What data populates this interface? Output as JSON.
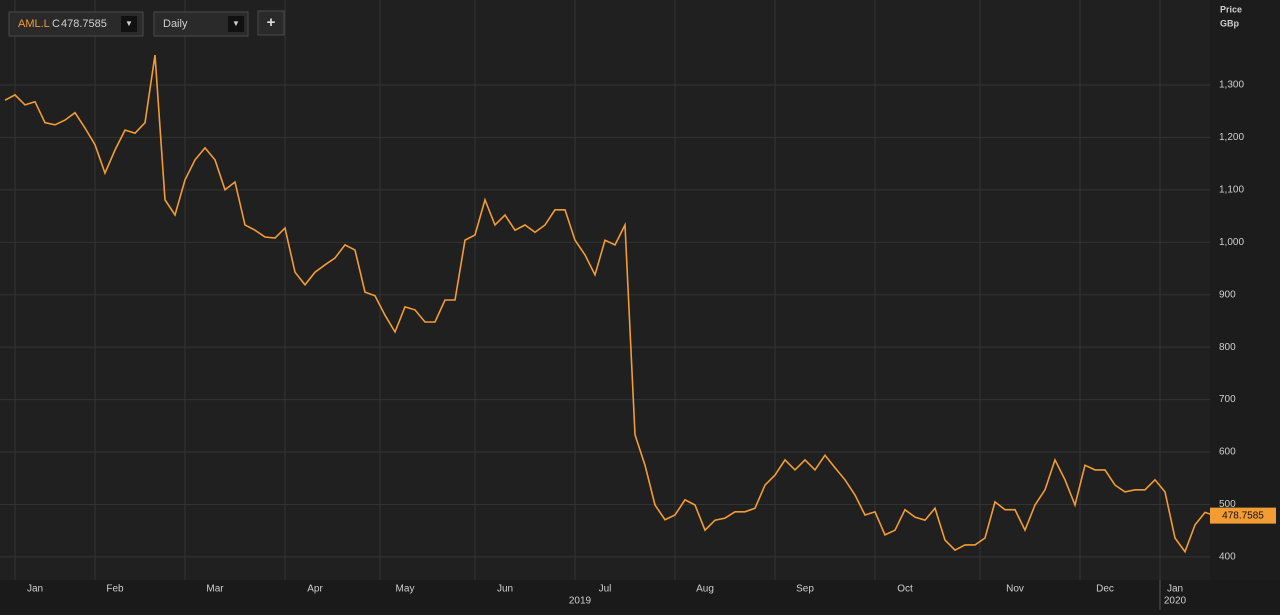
{
  "header": {
    "ticker": "AML.L",
    "close_prefix": "C",
    "close": 478.7585,
    "interval": "Daily",
    "add_button": "+"
  },
  "chart_data": {
    "type": "line",
    "axis_title": [
      "Price",
      "GBp"
    ],
    "categories": [
      null,
      null,
      null,
      "Jan",
      null,
      null,
      null,
      null,
      null,
      null,
      null,
      "Feb",
      null,
      null,
      null,
      null,
      null,
      null,
      null,
      null,
      null,
      "Mar",
      null,
      null,
      null,
      null,
      null,
      null,
      null,
      null,
      null,
      "Apr",
      null,
      null,
      null,
      null,
      null,
      null,
      null,
      null,
      "May",
      null,
      null,
      null,
      null,
      null,
      null,
      null,
      null,
      null,
      "Jun",
      null,
      null,
      null,
      null,
      null,
      null,
      null,
      null,
      null,
      "Jul",
      null,
      null,
      null,
      null,
      null,
      null,
      null,
      null,
      null,
      "Aug",
      null,
      null,
      null,
      null,
      null,
      null,
      null,
      null,
      null,
      "Sep",
      null,
      null,
      null,
      null,
      null,
      null,
      null,
      null,
      null,
      "Oct",
      null,
      null,
      null,
      null,
      null,
      null,
      null,
      null,
      null,
      null,
      "Nov",
      null,
      null,
      null,
      null,
      null,
      null,
      null,
      null,
      "Dec",
      null,
      null,
      null,
      null,
      null,
      null,
      "Jan",
      null,
      null,
      null,
      null
    ],
    "year_labels": [
      "2019",
      "2020"
    ],
    "series": [
      {
        "name": "AML.L",
        "color": "#f39c34",
        "values": [
          1271,
          1281,
          1262,
          1268,
          1228,
          1224,
          1233,
          1247,
          1218,
          1186,
          1132,
          1176,
          1214,
          1208,
          1228,
          1357,
          1081,
          1052,
          1119,
          1157,
          1180,
          1157,
          1100,
          1115,
          1033,
          1023,
          1010,
          1008,
          1027,
          943,
          919,
          943,
          957,
          970,
          995,
          985,
          905,
          898,
          861,
          829,
          877,
          871,
          848,
          848,
          890,
          890,
          1004,
          1014,
          1081,
          1033,
          1052,
          1023,
          1033,
          1019,
          1033,
          1062,
          1062,
          1004,
          976,
          938,
          1004,
          995,
          1033,
          633,
          575,
          499,
          471,
          480,
          509,
          499,
          451,
          470,
          474,
          486,
          486,
          493,
          537,
          556,
          585,
          566,
          585,
          566,
          594,
          570,
          547,
          518,
          480,
          486,
          442,
          451,
          490,
          476,
          470,
          493,
          432,
          413,
          423,
          423,
          436,
          505,
          490,
          490,
          451,
          499,
          528,
          585,
          547,
          499,
          575,
          566,
          566,
          537,
          524,
          528,
          528,
          547,
          524,
          436,
          410,
          461,
          485,
          478.7585
        ]
      }
    ],
    "ylim": [
      356,
      1462
    ],
    "yticks": [
      400,
      500,
      600,
      700,
      800,
      900,
      {
        "value": 1000,
        "label": "1,000"
      },
      {
        "value": 1100,
        "label": "1,100"
      },
      {
        "value": 1200,
        "label": "1,200"
      },
      {
        "value": 1300,
        "label": "1,300"
      }
    ],
    "grid": true
  }
}
